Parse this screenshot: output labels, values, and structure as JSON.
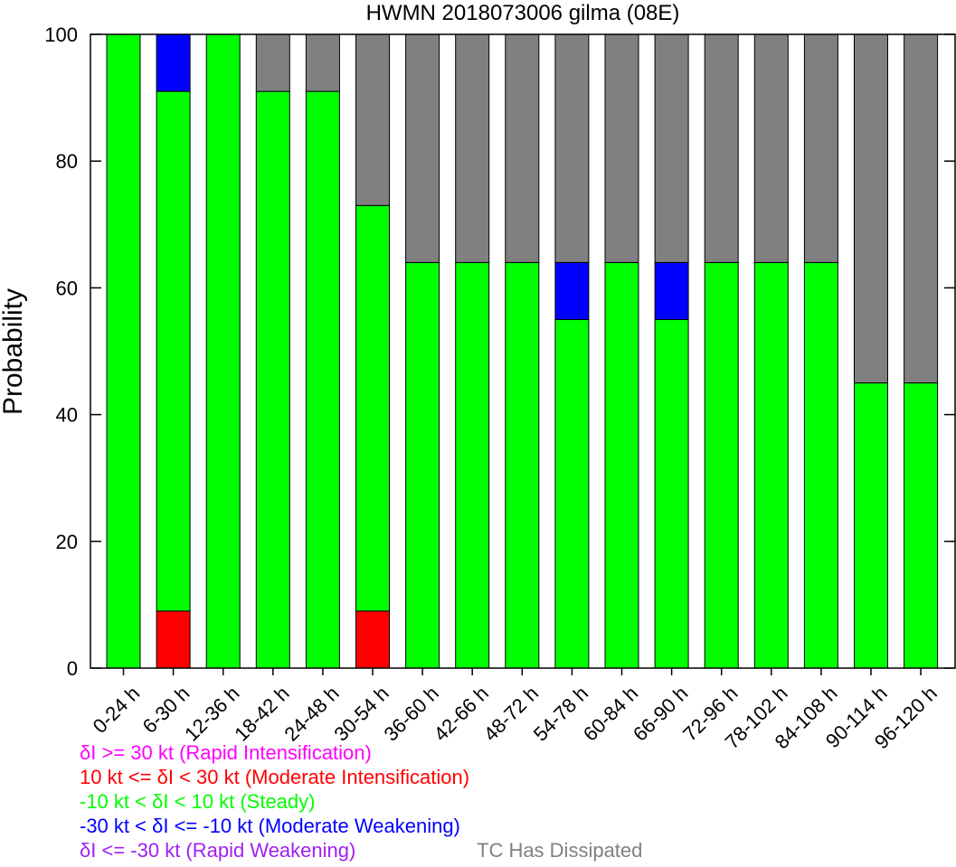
{
  "chart_data": {
    "type": "bar",
    "stacked": true,
    "title": "HWMN 2018073006 gilma (08E)",
    "ylabel": "Probability",
    "xlabel": "",
    "ylim": [
      0,
      100
    ],
    "yticks": [
      0,
      20,
      40,
      60,
      80,
      100
    ],
    "grid": false,
    "categories": [
      "0-24 h",
      "6-30 h",
      "12-36 h",
      "18-42 h",
      "24-48 h",
      "30-54 h",
      "36-60 h",
      "42-66 h",
      "48-72 h",
      "54-78 h",
      "60-84 h",
      "66-90 h",
      "72-96 h",
      "78-102 h",
      "84-108 h",
      "90-114 h",
      "96-120 h"
    ],
    "series": [
      {
        "name": "δI >= 30 kt (Rapid Intensification)",
        "color": "#ff00ff",
        "values": [
          0,
          0,
          0,
          0,
          0,
          0,
          0,
          0,
          0,
          0,
          0,
          0,
          0,
          0,
          0,
          0,
          0
        ]
      },
      {
        "name": "10 kt <= δI < 30 kt (Moderate Intensification)",
        "color": "#ff0000",
        "values": [
          0,
          9,
          0,
          0,
          0,
          9,
          0,
          0,
          0,
          0,
          0,
          0,
          0,
          0,
          0,
          0,
          0
        ]
      },
      {
        "name": "-10 kt < δI < 10 kt (Steady)",
        "color": "#00ff00",
        "values": [
          100,
          82,
          100,
          91,
          91,
          64,
          64,
          64,
          64,
          55,
          64,
          55,
          64,
          64,
          64,
          45,
          45
        ]
      },
      {
        "name": "-30 kt < δI <= -10 kt (Moderate Weakening)",
        "color": "#0000ff",
        "values": [
          0,
          9,
          0,
          0,
          0,
          0,
          0,
          0,
          0,
          9,
          0,
          9,
          0,
          0,
          0,
          0,
          0
        ]
      },
      {
        "name": "δI <= -30 kt (Rapid Weakening)",
        "color": "#a020f0",
        "values": [
          0,
          0,
          0,
          0,
          0,
          0,
          0,
          0,
          0,
          0,
          0,
          0,
          0,
          0,
          0,
          0,
          0
        ]
      },
      {
        "name": "TC Has Dissipated",
        "color": "#808080",
        "values": [
          0,
          0,
          0,
          9,
          9,
          27,
          36,
          36,
          36,
          36,
          36,
          36,
          36,
          36,
          36,
          55,
          55
        ]
      }
    ],
    "legend": {
      "placement": "bottom-left",
      "entries": [
        {
          "text": "δI >= 30 kt (Rapid Intensification)",
          "color": "#ff00ff"
        },
        {
          "text": "10 kt <= δI < 30 kt (Moderate Intensification)",
          "color": "#ff0000"
        },
        {
          "text": "-10 kt < δI < 10 kt (Steady)",
          "color": "#00ff00"
        },
        {
          "text": "-30 kt < δI <= -10 kt (Moderate Weakening)",
          "color": "#0000ff"
        },
        {
          "text": "δI <= -30 kt (Rapid Weakening)",
          "color": "#a020f0"
        },
        {
          "text": "TC Has Dissipated",
          "color": "#808080"
        }
      ]
    }
  }
}
